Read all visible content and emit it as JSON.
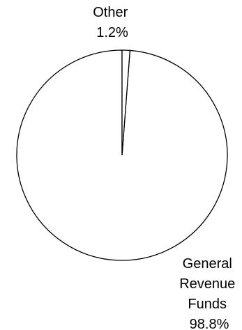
{
  "chart_data": {
    "type": "pie",
    "title": "",
    "slices": [
      {
        "label_lines": [
          "General",
          "Revenue",
          "Funds"
        ],
        "value": 98.8,
        "value_label": "98.8%",
        "fill": "#ffffff"
      },
      {
        "label_lines": [
          "Other"
        ],
        "value": 1.2,
        "value_label": "1.2%",
        "fill": "#ffffff"
      }
    ],
    "start_angle_deg": 0,
    "direction": "counterclockwise",
    "stroke_color": "#000000",
    "legend": "none"
  }
}
